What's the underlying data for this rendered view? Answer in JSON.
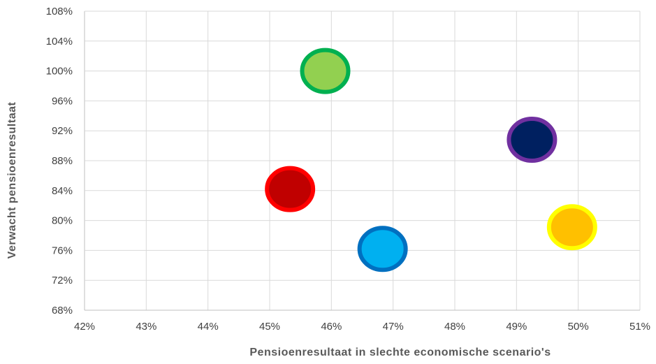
{
  "chart_data": {
    "type": "scatter",
    "title": "",
    "xlabel": "Pensioenresultaat in slechte economische scenario's",
    "ylabel": "Verwacht pensioenresultaat",
    "xlim": [
      42,
      51
    ],
    "ylim": [
      68,
      108
    ],
    "x_ticks": [
      "42%",
      "43%",
      "44%",
      "45%",
      "46%",
      "47%",
      "48%",
      "49%",
      "50%",
      "51%"
    ],
    "y_ticks": [
      "108%",
      "104%",
      "100%",
      "96%",
      "92%",
      "88%",
      "84%",
      "80%",
      "76%",
      "72%",
      "68%"
    ],
    "grid": true,
    "legend": "none",
    "points": [
      {
        "x": 45.9,
        "y": 100.0,
        "fill": "#92d050",
        "stroke": "#00b050"
      },
      {
        "x": 49.25,
        "y": 90.8,
        "fill": "#002060",
        "stroke": "#7030a0"
      },
      {
        "x": 45.33,
        "y": 84.2,
        "fill": "#c00000",
        "stroke": "#ff0000"
      },
      {
        "x": 49.9,
        "y": 79.1,
        "fill": "#ffc000",
        "stroke": "#ffff00"
      },
      {
        "x": 46.83,
        "y": 76.2,
        "fill": "#00b0f0",
        "stroke": "#0070c0"
      }
    ]
  }
}
